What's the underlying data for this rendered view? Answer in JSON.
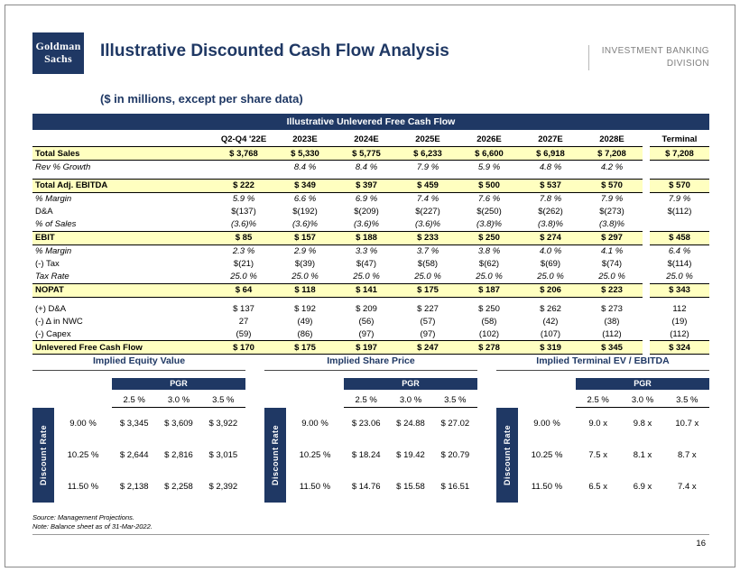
{
  "header": {
    "logo_line1": "Goldman",
    "logo_line2": "Sachs",
    "title": "Illustrative Discounted Cash Flow Analysis",
    "division_line1": "INVESTMENT BANKING",
    "division_line2": "DIVISION",
    "subtitle": "($ in millions, except per share data)"
  },
  "main_table": {
    "title": "Illustrative Unlevered Free Cash Flow",
    "columns": [
      "",
      "Q2-Q4 '22E",
      "2023E",
      "2024E",
      "2025E",
      "2026E",
      "2027E",
      "2028E",
      "Terminal"
    ],
    "rows": [
      {
        "label": "Total Sales",
        "style": "total",
        "values": [
          "$ 3,768",
          "$ 5,330",
          "$ 5,775",
          "$ 6,233",
          "$ 6,600",
          "$ 6,918",
          "$ 7,208"
        ],
        "terminal": "$ 7,208"
      },
      {
        "label": "Rev % Growth",
        "style": "pct",
        "values": [
          "",
          "8.4 %",
          "8.4 %",
          "7.9 %",
          "5.9 %",
          "4.8 %",
          "4.2 %"
        ],
        "terminal": ""
      },
      {
        "label": "",
        "style": "spacer",
        "values": [],
        "terminal": ""
      },
      {
        "label": "Total Adj. EBITDA",
        "style": "total",
        "values": [
          "$ 222",
          "$ 349",
          "$ 397",
          "$ 459",
          "$ 500",
          "$ 537",
          "$ 570"
        ],
        "terminal": "$ 570"
      },
      {
        "label": "% Margin",
        "style": "pct",
        "values": [
          "5.9 %",
          "6.6 %",
          "6.9 %",
          "7.4 %",
          "7.6 %",
          "7.8 %",
          "7.9 %"
        ],
        "terminal": "7.9 %"
      },
      {
        "label": "D&A",
        "style": "plain",
        "values": [
          "$(137)",
          "$(192)",
          "$(209)",
          "$(227)",
          "$(250)",
          "$(262)",
          "$(273)"
        ],
        "terminal": "$(112)"
      },
      {
        "label": "% of Sales",
        "style": "pct",
        "values": [
          "(3.6)%",
          "(3.6)%",
          "(3.6)%",
          "(3.6)%",
          "(3.8)%",
          "(3.8)%",
          "(3.8)%"
        ],
        "terminal": ""
      },
      {
        "label": "EBIT",
        "style": "total",
        "values": [
          "$ 85",
          "$ 157",
          "$ 188",
          "$ 233",
          "$ 250",
          "$ 274",
          "$ 297"
        ],
        "terminal": "$ 458"
      },
      {
        "label": "% Margin",
        "style": "pct",
        "values": [
          "2.3 %",
          "2.9 %",
          "3.3 %",
          "3.7 %",
          "3.8 %",
          "4.0 %",
          "4.1 %"
        ],
        "terminal": "6.4 %"
      },
      {
        "label": "(-) Tax",
        "style": "plain",
        "values": [
          "$(21)",
          "$(39)",
          "$(47)",
          "$(58)",
          "$(62)",
          "$(69)",
          "$(74)"
        ],
        "terminal": "$(114)"
      },
      {
        "label": "Tax Rate",
        "style": "pct",
        "values": [
          "25.0 %",
          "25.0 %",
          "25.0 %",
          "25.0 %",
          "25.0 %",
          "25.0 %",
          "25.0 %"
        ],
        "terminal": "25.0 %"
      },
      {
        "label": "NOPAT",
        "style": "total",
        "values": [
          "$ 64",
          "$ 118",
          "$ 141",
          "$ 175",
          "$ 187",
          "$ 206",
          "$ 223"
        ],
        "terminal": "$ 343"
      },
      {
        "label": "",
        "style": "spacer",
        "values": [],
        "terminal": ""
      },
      {
        "label": "(+) D&A",
        "style": "plain",
        "values": [
          "$ 137",
          "$ 192",
          "$ 209",
          "$ 227",
          "$ 250",
          "$ 262",
          "$ 273"
        ],
        "terminal": "112"
      },
      {
        "label": "(-) Δ in NWC",
        "style": "plain",
        "values": [
          "27",
          "(49)",
          "(56)",
          "(57)",
          "(58)",
          "(42)",
          "(38)"
        ],
        "terminal": "(19)"
      },
      {
        "label": "(-) Capex",
        "style": "plain",
        "values": [
          "(59)",
          "(86)",
          "(97)",
          "(97)",
          "(102)",
          "(107)",
          "(112)"
        ],
        "terminal": "(112)"
      },
      {
        "label": "Unlevered Free Cash Flow",
        "style": "total",
        "values": [
          "$ 170",
          "$ 175",
          "$ 197",
          "$ 247",
          "$ 278",
          "$ 319",
          "$ 345"
        ],
        "terminal": "$ 324"
      }
    ]
  },
  "sensitivity_tables": [
    {
      "title": "Implied Equity Value",
      "pgr_label": "PGR",
      "pgr_columns": [
        "2.5 %",
        "3.0 %",
        "3.5 %"
      ],
      "row_axis_label": "Discount Rate",
      "rows": [
        {
          "rate": "9.00 %",
          "values": [
            "$ 3,345",
            "$ 3,609",
            "$ 3,922"
          ]
        },
        {
          "rate": "10.25 %",
          "values": [
            "$ 2,644",
            "$ 2,816",
            "$ 3,015"
          ]
        },
        {
          "rate": "11.50 %",
          "values": [
            "$ 2,138",
            "$ 2,258",
            "$ 2,392"
          ]
        }
      ]
    },
    {
      "title": "Implied Share Price",
      "pgr_label": "PGR",
      "pgr_columns": [
        "2.5 %",
        "3.0 %",
        "3.5 %"
      ],
      "row_axis_label": "Discount Rate",
      "rows": [
        {
          "rate": "9.00 %",
          "values": [
            "$ 23.06",
            "$ 24.88",
            "$ 27.02"
          ]
        },
        {
          "rate": "10.25 %",
          "values": [
            "$ 18.24",
            "$ 19.42",
            "$ 20.79"
          ]
        },
        {
          "rate": "11.50 %",
          "values": [
            "$ 14.76",
            "$ 15.58",
            "$ 16.51"
          ]
        }
      ]
    },
    {
      "title": "Implied Terminal EV / EBITDA",
      "pgr_label": "PGR",
      "pgr_columns": [
        "2.5 %",
        "3.0 %",
        "3.5 %"
      ],
      "row_axis_label": "Discount Rate",
      "rows": [
        {
          "rate": "9.00 %",
          "values": [
            "9.0 x",
            "9.8 x",
            "10.7 x"
          ]
        },
        {
          "rate": "10.25 %",
          "values": [
            "7.5 x",
            "8.1 x",
            "8.7 x"
          ]
        },
        {
          "rate": "11.50 %",
          "values": [
            "6.5 x",
            "6.9 x",
            "7.4 x"
          ]
        }
      ]
    }
  ],
  "footer": {
    "source": "Source: Management Projections.",
    "note": "Note: Balance sheet as of 31-Mar-2022.",
    "page_number": "16"
  },
  "colors": {
    "navy": "#1F3864",
    "highlight_yellow": "#FFFFC0",
    "division_gray": "#7F7F7F"
  }
}
